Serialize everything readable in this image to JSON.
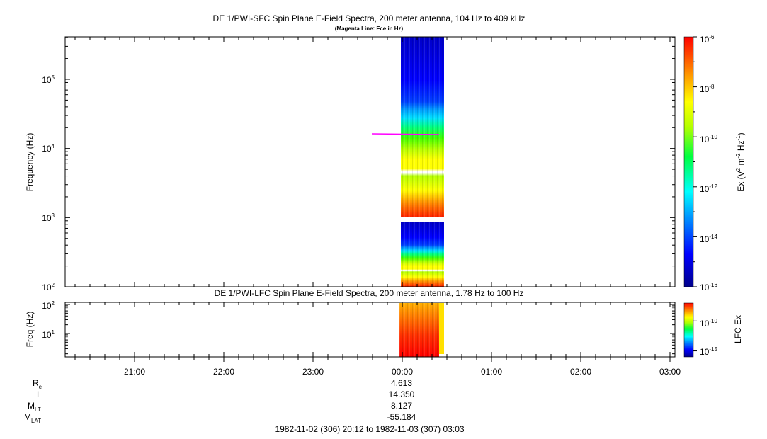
{
  "chart_data": [
    {
      "type": "heatmap",
      "title": "DE 1/PWI-SFC  Spin Plane E-Field Spectra, 200 meter antenna, 104 Hz to 409 kHz",
      "subtitle": "(Magenta Line: Fce in Hz)",
      "ylabel": "Frequency (Hz)",
      "yscale": "log",
      "ylim": [
        100,
        409000
      ],
      "y_ticks": [
        {
          "value": 100,
          "base": "10",
          "exp": "2"
        },
        {
          "value": 1000,
          "base": "10",
          "exp": "3"
        },
        {
          "value": 10000,
          "base": "10",
          "exp": "4"
        },
        {
          "value": 100000,
          "base": "10",
          "exp": "5"
        }
      ],
      "colorbar": {
        "label": "Ex (V² m⁻² Hz⁻¹)",
        "label_parts": {
          "a": "Ex (V",
          "b": "2",
          "c": " m",
          "d": "-2",
          "e": " Hz",
          "f": "-1",
          "g": ")"
        },
        "scale": "log",
        "range": [
          1e-16,
          1e-06
        ],
        "ticks": [
          {
            "value": 1e-06,
            "base": "10",
            "exp": "-6"
          },
          {
            "value": 1e-08,
            "base": "10",
            "exp": "-8"
          },
          {
            "value": 1e-10,
            "base": "10",
            "exp": "-10"
          },
          {
            "value": 1e-12,
            "base": "10",
            "exp": "-12"
          },
          {
            "value": 1e-14,
            "base": "10",
            "exp": "-14"
          },
          {
            "value": 1e-16,
            "base": "10",
            "exp": "-16"
          }
        ]
      },
      "data_coverage": {
        "start": "1982-11-03 00:00",
        "end": "1982-11-03 00:28"
      },
      "fce_line": {
        "color": "#ff00ff",
        "start": "1982-11-02 23:38",
        "end": "1982-11-03 00:25",
        "frequency_hz": 15000
      }
    },
    {
      "type": "heatmap",
      "title": "DE 1/PWI-LFC  Spin Plane E-Field Spectra, 200 meter antenna, 1.78 Hz to 100 Hz",
      "ylabel": "Freq (Hz)",
      "yscale": "log",
      "ylim": [
        2,
        120
      ],
      "y_ticks": [
        {
          "value": 10,
          "base": "10",
          "exp": "1"
        },
        {
          "value": 100,
          "base": "10",
          "exp": "2"
        }
      ],
      "colorbar": {
        "label": "LFC Ex",
        "scale": "log",
        "range": [
          1e-16,
          1e-07
        ],
        "ticks": [
          {
            "value": 1e-10,
            "base": "10",
            "exp": "-10"
          },
          {
            "value": 1e-15,
            "base": "10",
            "exp": "-15"
          }
        ]
      },
      "data_coverage": {
        "start": "1982-11-03 00:00",
        "end": "1982-11-03 00:28"
      }
    }
  ],
  "x_axis": {
    "start": "1982-11-02 20:12",
    "end": "1982-11-03 03:03",
    "tick_labels": [
      "21:00",
      "22:00",
      "23:00",
      "00:00",
      "01:00",
      "02:00",
      "03:00"
    ]
  },
  "ephemeris": {
    "labels": [
      {
        "main": "R",
        "sub": "e"
      },
      {
        "main": "L",
        "sub": ""
      },
      {
        "main": "M",
        "sub": "LT"
      },
      {
        "main": "M",
        "sub": "LAT"
      }
    ],
    "values": [
      "4.613",
      "14.350",
      "8.127",
      "-55.184"
    ]
  },
  "time_range": "1982-11-02 (306) 20:12 to 1982-11-03 (307) 03:03"
}
